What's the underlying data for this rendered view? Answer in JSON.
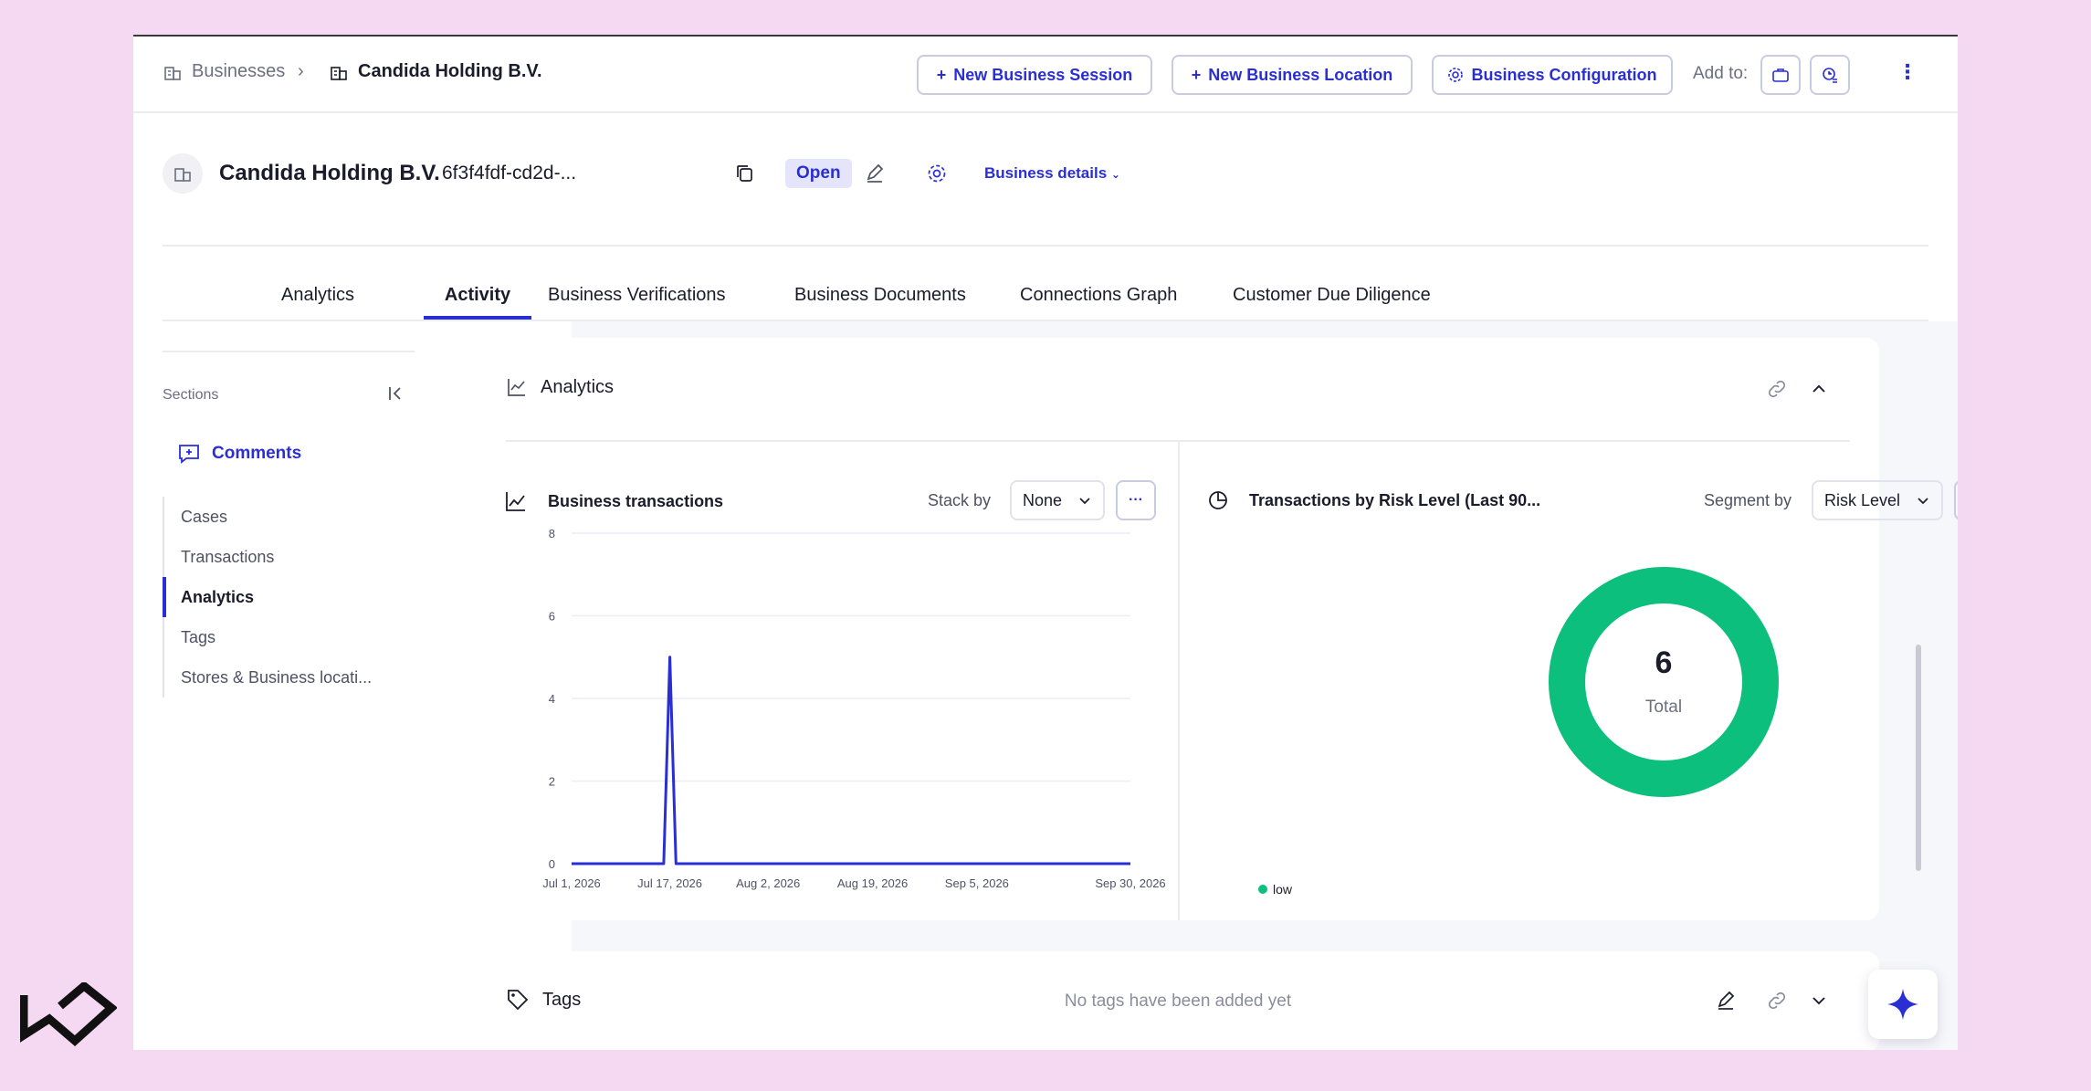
{
  "breadcrumb": {
    "root": "Businesses",
    "current": "Candida Holding B.V."
  },
  "toolbar": {
    "new_session": "New Business Session",
    "new_location": "New Business Location",
    "configuration": "Business Configuration",
    "add_to": "Add to:"
  },
  "header": {
    "name": "Candida Holding B.V.",
    "id": "6f3f4fdf-cd2d-...",
    "status": "Open",
    "details_link": "Business details"
  },
  "tabs": [
    "Analytics",
    "Activity",
    "Business Verifications",
    "Business Documents",
    "Connections Graph",
    "Customer Due Diligence"
  ],
  "active_tab": "Activity",
  "sidebar": {
    "title": "Sections",
    "comments": "Comments",
    "items": [
      "Cases",
      "Transactions",
      "Analytics",
      "Tags",
      "Stores & Business locati..."
    ],
    "active_item": "Analytics"
  },
  "analytics": {
    "title": "Analytics",
    "left_panel": {
      "title": "Business transactions",
      "stack_label": "Stack by",
      "stack_value": "None",
      "more": "···"
    },
    "right_panel": {
      "title": "Transactions by Risk Level (Last 90...",
      "segment_label": "Segment by",
      "segment_value": "Risk Level",
      "more": "···"
    }
  },
  "tags": {
    "title": "Tags",
    "empty": "No tags have been added yet"
  },
  "colors": {
    "accent": "#2a2fd4",
    "low": "#0dbf7d"
  },
  "chart_data": [
    {
      "type": "line",
      "title": "Business transactions",
      "x": [
        "Jul 1, 2026",
        "Jul 15, 2026",
        "Jul 16, 2026",
        "Jul 17, 2026",
        "Jul 18, 2026",
        "Jul 19, 2026",
        "Aug 2, 2026",
        "Aug 19, 2026",
        "Sep 5, 2026",
        "Sep 30, 2026"
      ],
      "values": [
        0,
        0,
        0,
        5,
        0,
        0,
        0,
        0,
        0,
        0
      ],
      "xticks": [
        "Jul 1, 2026",
        "Jul 17, 2026",
        "Aug 2, 2026",
        "Aug 19, 2026",
        "Sep 5, 2026",
        "Sep 30, 2026"
      ],
      "yticks": [
        0,
        2,
        4,
        6,
        8
      ],
      "ylim": [
        0,
        8
      ],
      "grid": true
    },
    {
      "type": "pie",
      "title": "Transactions by Risk Level (Last 90...",
      "categories": [
        "low"
      ],
      "values": [
        6
      ],
      "center_value": "6",
      "center_label": "Total",
      "legend": "bottom-left"
    }
  ]
}
